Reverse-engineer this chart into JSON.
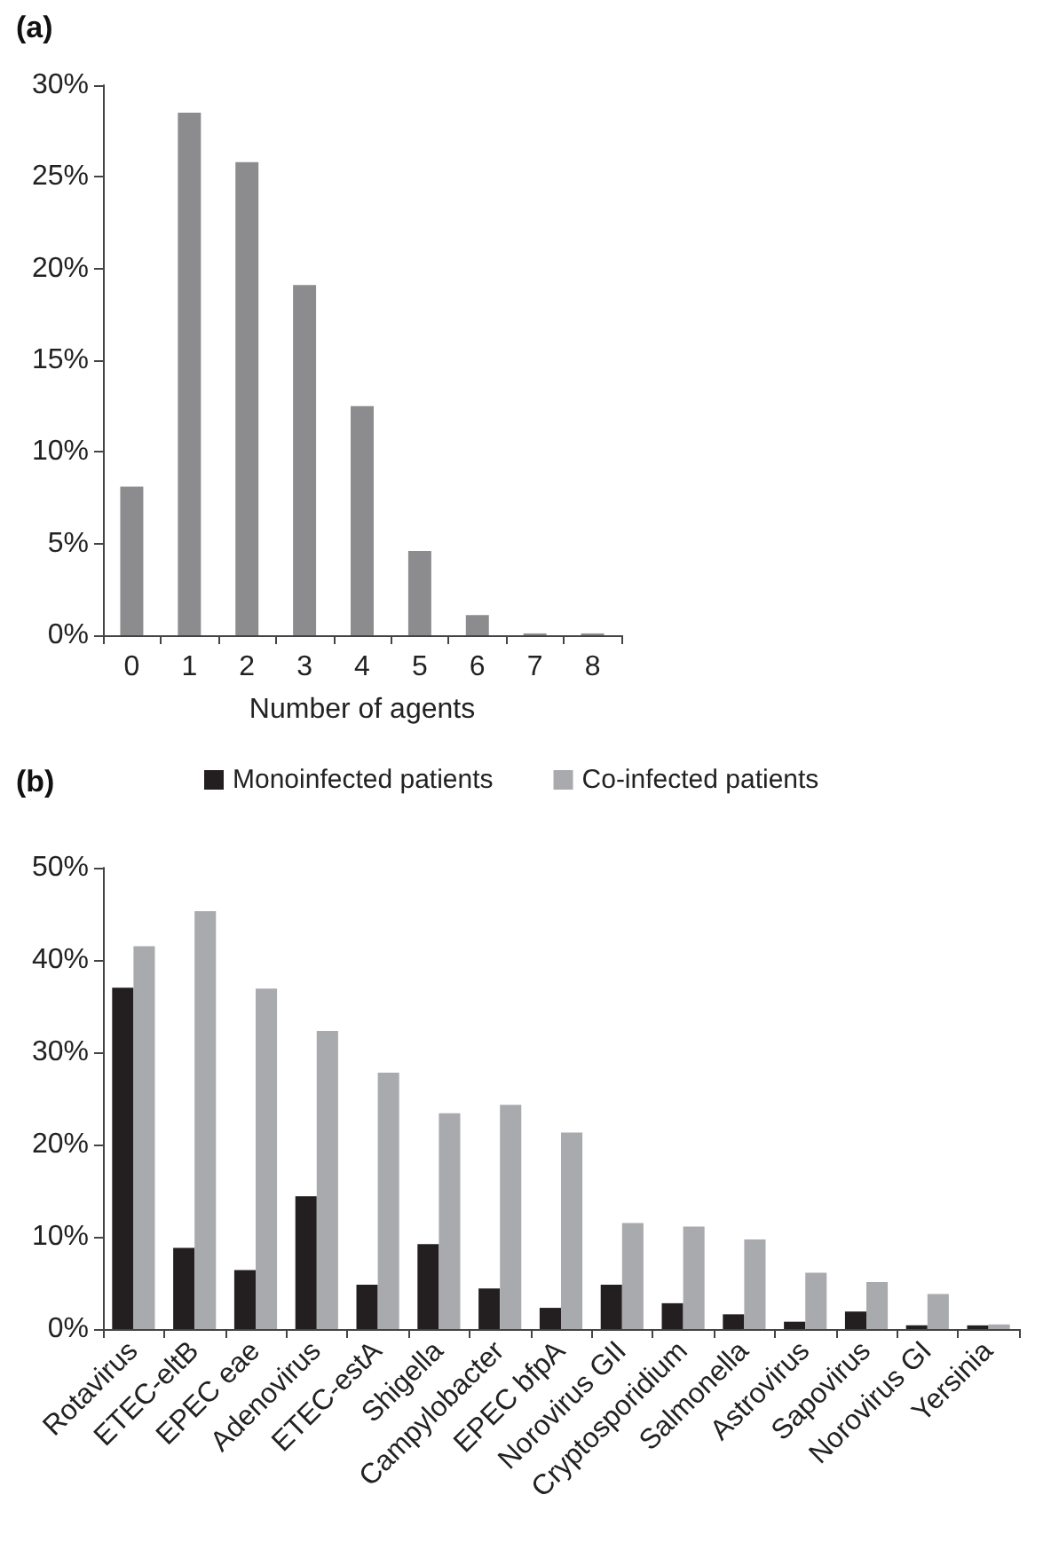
{
  "chart_data": [
    {
      "type": "bar",
      "title": "(a)",
      "xlabel": "Number of agents",
      "categories": [
        "0",
        "1",
        "2",
        "3",
        "4",
        "5",
        "6",
        "7",
        "8"
      ],
      "values": [
        8.1,
        28.5,
        25.8,
        19.1,
        12.5,
        4.6,
        1.1,
        0.1,
        0.1
      ],
      "color": "#8c8c8e",
      "ylim": [
        0,
        30
      ],
      "yticks": [
        {
          "value": 0,
          "label": "0%"
        },
        {
          "value": 5,
          "label": "5%"
        },
        {
          "value": 10,
          "label": "10%"
        },
        {
          "value": 15,
          "label": "15%"
        },
        {
          "value": 20,
          "label": "20%"
        },
        {
          "value": 25,
          "label": "25%"
        },
        {
          "value": 30,
          "label": "30%"
        }
      ],
      "grid": false,
      "legend": false
    },
    {
      "type": "bar",
      "title": "(b)",
      "categories": [
        "Rotavirus",
        "ETEC-eltB",
        "EPEC eae",
        "Adenovirus",
        "ETEC-estA",
        "Shigella",
        "Campylobacter",
        "EPEC bfpA",
        "Norovirus GII",
        "Cryptosporidium",
        "Salmonella",
        "Astrovirus",
        "Sapovirus",
        "Norovirus GI",
        "Yersinia"
      ],
      "series": [
        {
          "name": "Monoinfected patients",
          "color": "#231f20",
          "values": [
            37,
            8.8,
            6.4,
            14.4,
            4.8,
            9.2,
            4.4,
            2.3,
            4.8,
            2.8,
            1.6,
            0.8,
            1.9,
            0.4,
            0.4
          ]
        },
        {
          "name": "Co-infected patients",
          "color": "#a9aaad",
          "values": [
            41.5,
            45.3,
            36.9,
            32.3,
            27.8,
            23.4,
            24.3,
            21.3,
            11.5,
            11.1,
            9.7,
            6.1,
            5.1,
            3.8,
            0.5
          ]
        }
      ],
      "ylim": [
        0,
        50
      ],
      "yticks": [
        {
          "value": 0,
          "label": "0%"
        },
        {
          "value": 10,
          "label": "10%"
        },
        {
          "value": 20,
          "label": "20%"
        },
        {
          "value": 30,
          "label": "30%"
        },
        {
          "value": 40,
          "label": "40%"
        },
        {
          "value": 50,
          "label": "50%"
        }
      ],
      "grid": false,
      "legend": "top"
    }
  ]
}
